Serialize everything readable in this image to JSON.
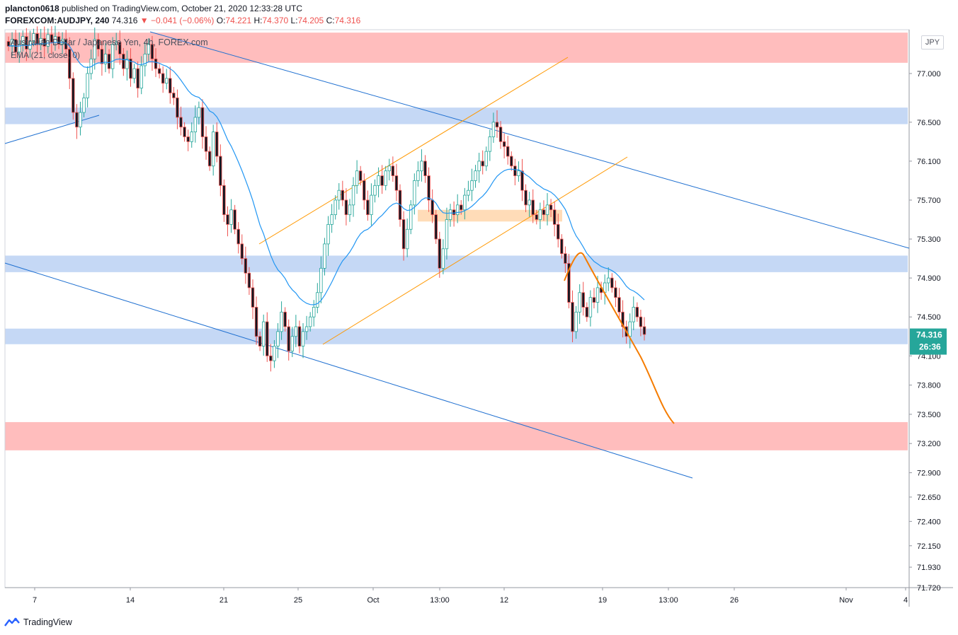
{
  "header": {
    "user": "plancton0618",
    "published_text": "published on TradingView.com, October 21, 2020 12:33:28 UTC",
    "symbol": "FOREXCOM:AUDJPY, 240",
    "last": "74.316",
    "change": "−0.041 (−0.06%)",
    "o_label": "O:",
    "o_value": "74.221",
    "h_label": "H:",
    "h_value": "74.370",
    "l_label": "L:",
    "l_value": "74.205",
    "c_label": "C:",
    "c_value": "74.316"
  },
  "legend": {
    "title": "Australian Dollar / Japanese Yen, 4h, FOREX.com",
    "ema": "EMA (21, close, 0)"
  },
  "currency_button": "JPY",
  "footer": {
    "brand": "TradingView"
  },
  "colors": {
    "up": "#26a69a",
    "down": "#ef5350",
    "candle_up_body": "#ffffff",
    "candle_down_body": "#131722",
    "ema": "#2196f3",
    "trendline": "#1e6fd0",
    "channel": "#ff9800",
    "projection": "#f57c00",
    "support_zone": "#c5d8f5",
    "strong_zone": "#ffbdbd",
    "pivot_zone": "#ffdcb8",
    "price_label": "#26a69a"
  },
  "chart_data": {
    "type": "candlestick",
    "ylim": [
      71.72,
      77.45
    ],
    "x_ticks": [
      "7",
      "14",
      "21",
      "25",
      "Oct",
      "13:00",
      "12",
      "19",
      "13:00",
      "26",
      "Nov",
      "4"
    ],
    "y_ticks": [
      "77.000",
      "76.500",
      "76.100",
      "75.700",
      "75.300",
      "74.900",
      "74.500",
      "74.100",
      "73.800",
      "73.500",
      "73.200",
      "72.900",
      "72.650",
      "72.400",
      "72.150",
      "71.930",
      "71.720"
    ],
    "last_price": "74.316",
    "countdown": "26:36",
    "closes": [
      77.28,
      77.35,
      77.22,
      77.3,
      77.38,
      77.25,
      77.33,
      77.41,
      77.3,
      77.36,
      77.28,
      77.4,
      77.32,
      77.38,
      77.3,
      77.35,
      77.25,
      76.95,
      76.6,
      76.45,
      76.6,
      76.75,
      77.0,
      77.15,
      77.35,
      77.25,
      77.1,
      77.2,
      77.05,
      77.3,
      77.32,
      77.2,
      77.05,
      77.15,
      76.95,
      77.05,
      76.85,
      77.08,
      77.2,
      77.3,
      77.15,
      77.05,
      77.0,
      76.9,
      76.95,
      76.8,
      76.75,
      76.55,
      76.45,
      76.35,
      76.3,
      76.4,
      76.55,
      76.65,
      76.35,
      76.2,
      76.05,
      76.4,
      76.15,
      75.85,
      75.55,
      75.45,
      75.6,
      75.4,
      75.25,
      75.1,
      74.95,
      74.8,
      74.6,
      74.3,
      74.2,
      74.45,
      74.1,
      74.05,
      74.2,
      74.35,
      74.55,
      74.4,
      74.15,
      74.3,
      74.4,
      74.2,
      74.35,
      74.4,
      74.5,
      74.6,
      74.75,
      75.0,
      75.25,
      75.45,
      75.55,
      75.7,
      75.8,
      75.7,
      75.55,
      75.65,
      75.85,
      76.0,
      75.9,
      75.7,
      75.55,
      75.75,
      75.85,
      75.95,
      75.85,
      76.0,
      76.05,
      75.95,
      75.8,
      75.5,
      75.2,
      75.4,
      75.65,
      75.9,
      76.0,
      76.1,
      75.95,
      75.7,
      75.55,
      75.3,
      75.0,
      75.2,
      75.5,
      75.6,
      75.55,
      75.65,
      75.6,
      75.75,
      75.8,
      75.9,
      76.0,
      76.1,
      76.05,
      76.2,
      76.35,
      76.5,
      76.45,
      76.3,
      76.25,
      76.15,
      76.05,
      75.95,
      76.0,
      75.8,
      75.65,
      75.7,
      75.55,
      75.5,
      75.6,
      75.55,
      75.65,
      75.6,
      75.45,
      75.3,
      75.15,
      75.05,
      74.65,
      74.35,
      74.55,
      74.75,
      74.6,
      74.5,
      74.7,
      74.65,
      74.8,
      74.75,
      74.85,
      74.9,
      74.8,
      74.7,
      74.55,
      74.4,
      74.3,
      74.45,
      74.6,
      74.5,
      74.4,
      74.32
    ],
    "annotations": {
      "support_zones": [
        [
          76.48,
          76.65
        ],
        [
          74.96,
          75.13
        ],
        [
          74.22,
          74.38
        ]
      ],
      "strong_zones": [
        [
          77.11,
          77.42
        ],
        [
          73.13,
          73.42
        ]
      ],
      "pivot_zone": [
        75.48,
        75.6
      ],
      "descending_channel": "upper trendline from 77.35 falling to 75.10; lower trendline from 74.95 falling to 72.80",
      "rising_channel": "orange lines from 75.20 rising to 77.20 and from 74.15 rising to 76.10",
      "projection": "orange curve from 74.20 up to 75.05, then down to 73.35"
    }
  }
}
